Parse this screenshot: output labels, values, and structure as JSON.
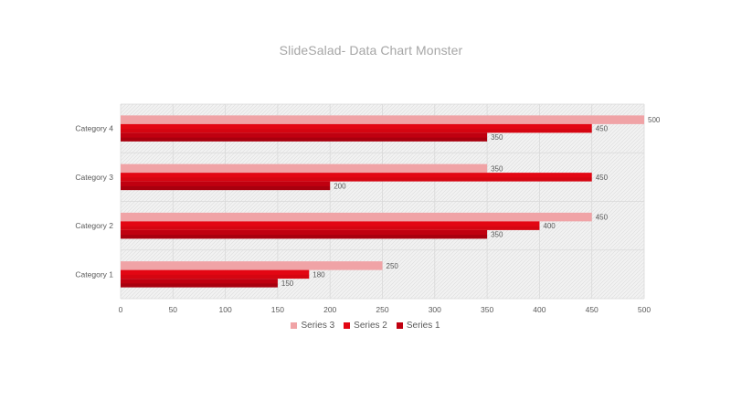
{
  "slide": {
    "title": "SlideSalad-  Data Chart Monster"
  },
  "chart_data": {
    "type": "bar",
    "orientation": "horizontal",
    "title": "SlideSalad-  Data Chart Monster",
    "xlabel": "",
    "ylabel": "",
    "categories": [
      "Category 1",
      "Category 2",
      "Category 3",
      "Category 4"
    ],
    "series": [
      {
        "name": "Series 3",
        "values": [
          250,
          450,
          350,
          500
        ],
        "color": "#f0a3a6"
      },
      {
        "name": "Series 2",
        "values": [
          180,
          400,
          450,
          450
        ],
        "color": "#e30613"
      },
      {
        "name": "Series 1",
        "values": [
          150,
          350,
          200,
          350
        ],
        "color": "#c00010"
      }
    ],
    "xlim": [
      0,
      500
    ],
    "xticks": [
      "0",
      "50",
      "100",
      "150",
      "200",
      "250",
      "300",
      "350",
      "400",
      "450",
      "500"
    ],
    "grid": true,
    "data_labels": true,
    "legend_position": "bottom",
    "colors": {
      "title": "#a6a6a6",
      "axis_text": "#595959",
      "grid": "#d9d9d9",
      "plot_bg": "#f2f2f2",
      "hatch": "#e0e0e0"
    }
  }
}
